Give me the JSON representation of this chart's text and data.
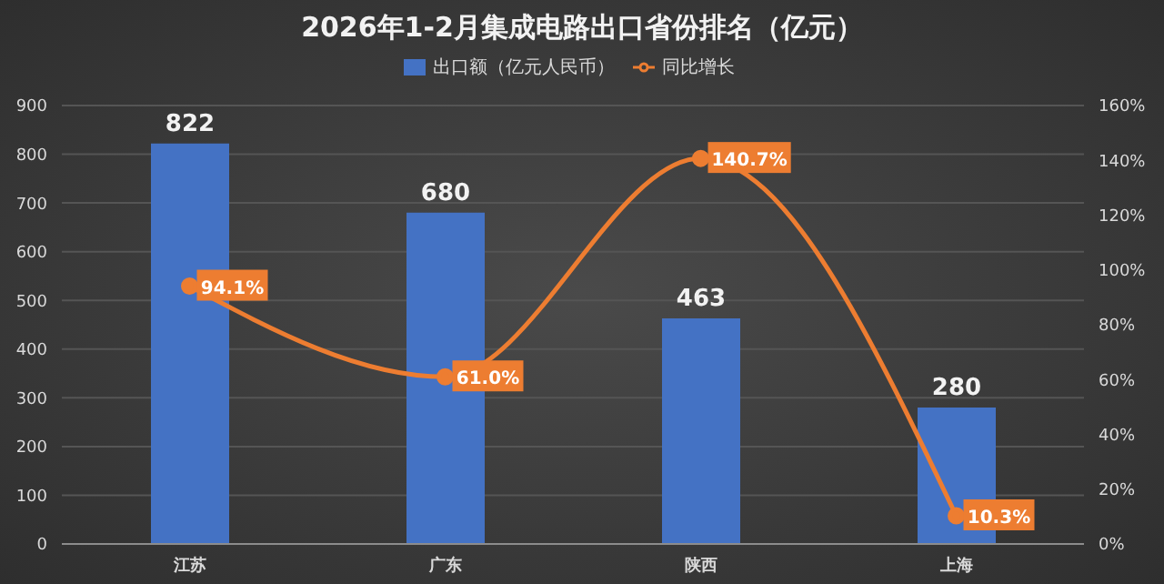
{
  "chart_data": {
    "type": "bar",
    "title": "2026年1-2月集成电路出口省份排名（亿元）",
    "categories": [
      "江苏",
      "广东",
      "陕西",
      "上海"
    ],
    "series": [
      {
        "name": "出口额（亿元人民币）",
        "color": "#4472c4",
        "values": [
          822,
          680,
          463,
          280
        ],
        "value_labels": [
          "822",
          "680",
          "463",
          "280"
        ]
      },
      {
        "name": "同比增长",
        "type": "line",
        "axis": "y2",
        "color": "#ed7d31",
        "values": [
          94.1,
          61.0,
          140.7,
          10.3
        ],
        "value_labels": [
          "94.1%",
          "61.0%",
          "140.7%",
          "10.3%"
        ]
      }
    ],
    "ylim": [
      0,
      900
    ],
    "yticks": [
      0,
      100,
      200,
      300,
      400,
      500,
      600,
      700,
      800,
      900
    ],
    "y2lim": [
      0,
      160
    ],
    "y2ticks": [
      {
        "value": 0,
        "label": "0%"
      },
      {
        "value": 20,
        "label": "20%"
      },
      {
        "value": 40,
        "label": "40%"
      },
      {
        "value": 60,
        "label": "60%"
      },
      {
        "value": 80,
        "label": "80%"
      },
      {
        "value": 100,
        "label": "100%"
      },
      {
        "value": 120,
        "label": "120%"
      },
      {
        "value": 140,
        "label": "140%"
      },
      {
        "value": 160,
        "label": "160%"
      }
    ],
    "grid": "y",
    "legend": "top",
    "marker": "circle",
    "line_style": "solid"
  }
}
